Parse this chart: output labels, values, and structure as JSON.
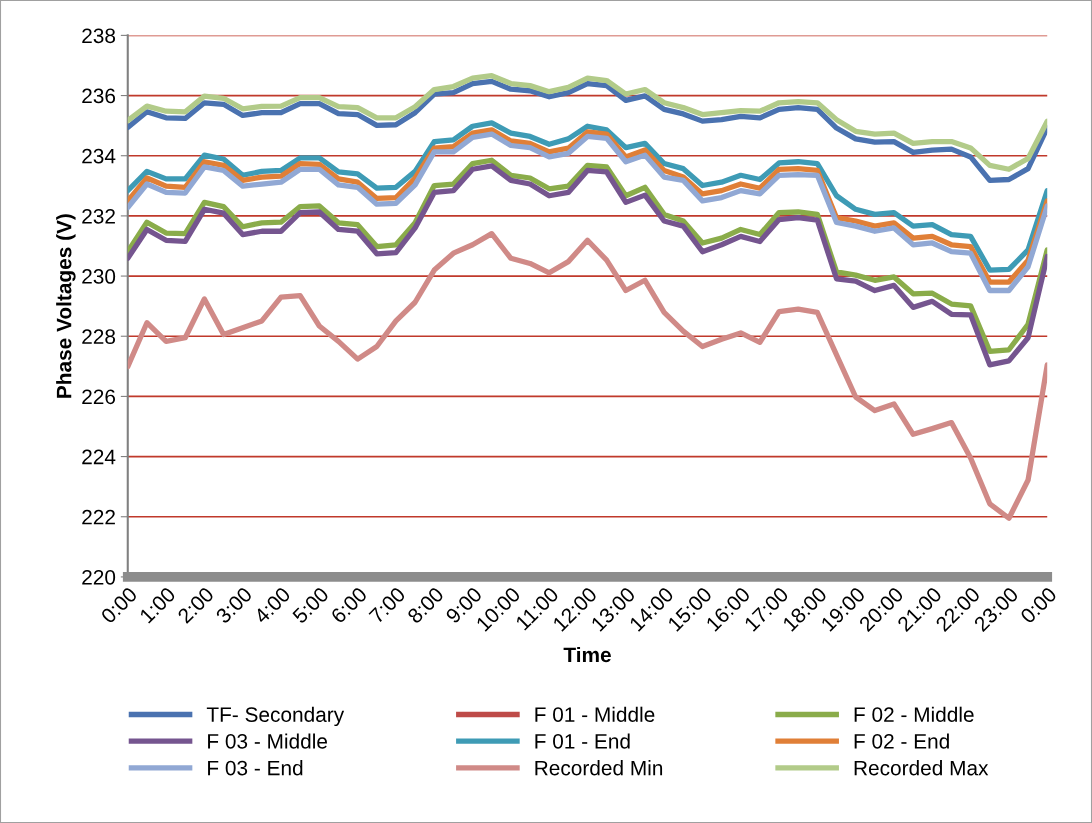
{
  "chart_data": {
    "type": "line",
    "xlabel": "Time",
    "ylabel": "Phase Voltages (V)",
    "x": [
      0,
      0.5,
      1,
      1.5,
      2,
      2.5,
      3,
      3.5,
      4,
      4.5,
      5,
      5.5,
      6,
      6.5,
      7,
      7.5,
      8,
      8.5,
      9,
      9.5,
      10,
      10.5,
      11,
      11.5,
      12,
      12.5,
      13,
      13.5,
      14,
      14.5,
      15,
      15.5,
      16,
      16.5,
      17,
      17.5,
      18,
      18.5,
      19,
      19.5,
      20,
      20.5,
      21,
      21.5,
      22,
      22.5,
      23,
      23.5,
      24
    ],
    "xlim": [
      0,
      24
    ],
    "xticks": [
      {
        "value": 0,
        "label": "0:00"
      },
      {
        "value": 1,
        "label": "1:00"
      },
      {
        "value": 2,
        "label": "2:00"
      },
      {
        "value": 3,
        "label": "3:00"
      },
      {
        "value": 4,
        "label": "4:00"
      },
      {
        "value": 5,
        "label": "5:00"
      },
      {
        "value": 6,
        "label": "6:00"
      },
      {
        "value": 7,
        "label": "7:00"
      },
      {
        "value": 8,
        "label": "8:00"
      },
      {
        "value": 9,
        "label": "9:00"
      },
      {
        "value": 10,
        "label": "10:00"
      },
      {
        "value": 11,
        "label": "11:00"
      },
      {
        "value": 12,
        "label": "12:00"
      },
      {
        "value": 13,
        "label": "13:00"
      },
      {
        "value": 14,
        "label": "14:00"
      },
      {
        "value": 15,
        "label": "15:00"
      },
      {
        "value": 16,
        "label": "16:00"
      },
      {
        "value": 17,
        "label": "17:00"
      },
      {
        "value": 18,
        "label": "18:00"
      },
      {
        "value": 19,
        "label": "19:00"
      },
      {
        "value": 20,
        "label": "20:00"
      },
      {
        "value": 21,
        "label": "21:00"
      },
      {
        "value": 22,
        "label": "22:00"
      },
      {
        "value": 23,
        "label": "23:00"
      },
      {
        "value": 24,
        "label": "0:00"
      }
    ],
    "ylim": [
      220,
      238
    ],
    "yticks": [
      220,
      222,
      224,
      226,
      228,
      230,
      232,
      234,
      236,
      238
    ],
    "grid": "y",
    "legend": "bottom",
    "marker": "none",
    "line_style": "solid",
    "series": [
      {
        "name": "TF- Secondary",
        "color": "#4a72b0",
        "values": [
          234.94,
          235.46,
          235.26,
          235.24,
          235.76,
          235.71,
          235.34,
          235.43,
          235.43,
          235.73,
          235.73,
          235.4,
          235.37,
          235.01,
          235.03,
          235.43,
          236.05,
          236.1,
          236.4,
          236.47,
          236.21,
          236.16,
          235.96,
          236.1,
          236.4,
          236.33,
          235.84,
          235.99,
          235.54,
          235.39,
          235.15,
          235.2,
          235.31,
          235.26,
          235.54,
          235.6,
          235.54,
          234.92,
          234.56,
          234.45,
          234.47,
          234.11,
          234.19,
          234.22,
          233.96,
          233.18,
          233.21,
          233.57,
          234.92
        ]
      },
      {
        "name": "F 01 - Middle",
        "color": "#be4b48",
        "values": [
          null,
          null,
          null,
          null,
          null,
          null,
          null,
          null,
          null,
          null,
          null,
          null,
          null,
          null,
          null,
          null,
          null,
          null,
          null,
          null,
          null,
          null,
          null,
          null,
          null,
          null,
          null,
          null,
          null,
          null,
          null,
          null,
          null,
          null,
          null,
          null,
          null,
          null,
          null,
          null,
          null,
          null,
          null,
          null,
          null,
          null,
          null,
          null,
          null
        ]
      },
      {
        "name": "F 02 - Middle",
        "color": "#8aac4a",
        "values": [
          230.81,
          231.79,
          231.43,
          231.41,
          232.45,
          232.31,
          231.64,
          231.77,
          231.79,
          232.31,
          232.33,
          231.77,
          231.71,
          230.98,
          231.04,
          231.77,
          233.01,
          233.06,
          233.74,
          233.85,
          233.35,
          233.26,
          232.9,
          232.99,
          233.68,
          233.63,
          232.67,
          232.95,
          232.05,
          231.83,
          231.1,
          231.26,
          231.55,
          231.38,
          232.11,
          232.13,
          232.05,
          230.14,
          230.03,
          229.86,
          229.97,
          229.41,
          229.43,
          229.07,
          229.01,
          227.5,
          227.55,
          228.4,
          230.87
        ]
      },
      {
        "name": "F 03 - Middle",
        "color": "#75558f",
        "values": [
          230.59,
          231.55,
          231.19,
          231.15,
          232.22,
          232.09,
          231.38,
          231.49,
          231.49,
          232.11,
          232.13,
          231.55,
          231.49,
          230.74,
          230.78,
          231.6,
          232.78,
          232.84,
          233.55,
          233.66,
          233.18,
          233.06,
          232.67,
          232.78,
          233.51,
          233.46,
          232.45,
          232.69,
          231.83,
          231.66,
          230.81,
          231.04,
          231.32,
          231.15,
          231.88,
          231.94,
          231.86,
          229.91,
          229.83,
          229.52,
          229.69,
          228.96,
          229.16,
          228.73,
          228.71,
          227.05,
          227.18,
          227.95,
          230.65
        ]
      },
      {
        "name": "F 01 - End",
        "color": "#3e9bb5",
        "values": [
          232.84,
          233.48,
          233.23,
          233.23,
          234.02,
          233.89,
          233.35,
          233.48,
          233.51,
          233.93,
          233.93,
          233.46,
          233.4,
          232.92,
          232.95,
          233.48,
          234.47,
          234.53,
          234.98,
          235.09,
          234.75,
          234.64,
          234.38,
          234.56,
          234.98,
          234.86,
          234.27,
          234.41,
          233.74,
          233.57,
          233.01,
          233.12,
          233.35,
          233.21,
          233.76,
          233.8,
          233.74,
          232.67,
          232.22,
          232.05,
          232.11,
          231.66,
          231.71,
          231.38,
          231.32,
          230.2,
          230.22,
          230.87,
          232.84
        ]
      },
      {
        "name": "F 02 - End",
        "color": "#e07f37",
        "values": [
          232.5,
          233.26,
          232.99,
          232.95,
          233.8,
          233.68,
          233.18,
          233.29,
          233.32,
          233.74,
          233.71,
          233.23,
          233.12,
          232.58,
          232.61,
          233.26,
          234.25,
          234.3,
          234.75,
          234.86,
          234.49,
          234.41,
          234.13,
          234.25,
          234.79,
          234.72,
          233.96,
          234.19,
          233.51,
          233.29,
          232.73,
          232.84,
          233.06,
          232.92,
          233.55,
          233.57,
          233.51,
          231.94,
          231.83,
          231.66,
          231.77,
          231.26,
          231.32,
          231.04,
          230.98,
          229.8,
          229.8,
          230.53,
          232.5
        ]
      },
      {
        "name": "F 03 - End",
        "color": "#91a8d4",
        "values": [
          232.28,
          233.06,
          232.78,
          232.76,
          233.63,
          233.51,
          232.99,
          233.06,
          233.12,
          233.55,
          233.55,
          233.03,
          232.95,
          232.39,
          232.42,
          233.03,
          234.13,
          234.13,
          234.61,
          234.72,
          234.34,
          234.27,
          233.96,
          234.08,
          234.64,
          234.58,
          233.8,
          234.02,
          233.29,
          233.18,
          232.5,
          232.61,
          232.84,
          232.73,
          233.35,
          233.37,
          233.35,
          231.78,
          231.66,
          231.49,
          231.6,
          231.04,
          231.1,
          230.81,
          230.76,
          229.52,
          229.52,
          230.31,
          232.33
        ]
      },
      {
        "name": "Recorded Min",
        "color": "#d08a87",
        "values": [
          226.99,
          228.45,
          227.83,
          227.95,
          229.24,
          228.06,
          228.28,
          228.51,
          229.3,
          229.35,
          228.34,
          227.83,
          227.24,
          227.66,
          228.51,
          229.13,
          230.2,
          230.76,
          231.04,
          231.41,
          230.59,
          230.42,
          230.11,
          230.48,
          231.19,
          230.53,
          229.52,
          229.86,
          228.79,
          228.17,
          227.66,
          227.9,
          228.11,
          227.8,
          228.82,
          228.9,
          228.79,
          227.38,
          225.98,
          225.53,
          225.75,
          224.74,
          224.93,
          225.13,
          223.95,
          222.43,
          221.95,
          223.22,
          227.05
        ]
      },
      {
        "name": "Recorded Max",
        "color": "#b2cb89",
        "values": [
          235.17,
          235.65,
          235.48,
          235.46,
          235.98,
          235.91,
          235.56,
          235.64,
          235.65,
          235.93,
          235.93,
          235.63,
          235.6,
          235.26,
          235.26,
          235.63,
          236.2,
          236.3,
          236.58,
          236.66,
          236.4,
          236.33,
          236.13,
          236.27,
          236.58,
          236.5,
          236.05,
          236.2,
          235.76,
          235.6,
          235.37,
          235.43,
          235.5,
          235.48,
          235.76,
          235.8,
          235.76,
          235.2,
          234.81,
          234.72,
          234.75,
          234.41,
          234.47,
          234.47,
          234.26,
          233.68,
          233.55,
          233.91,
          235.15
        ]
      }
    ]
  }
}
